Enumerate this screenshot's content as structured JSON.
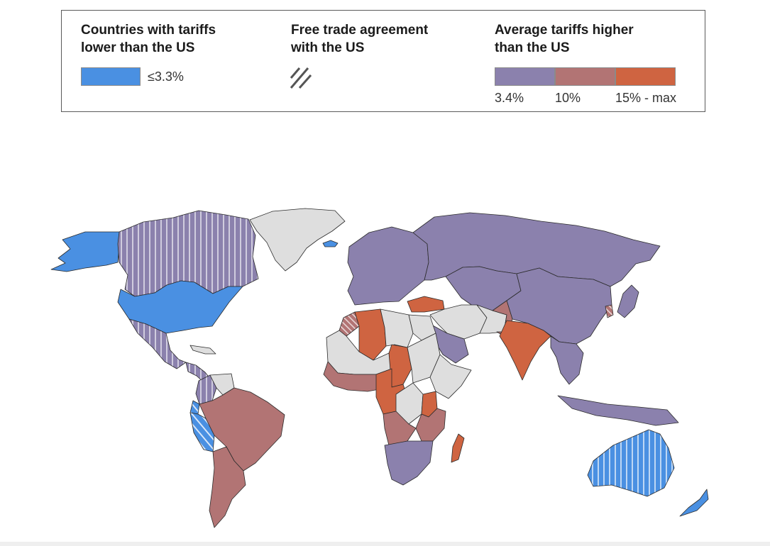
{
  "legend": {
    "lower": {
      "title": "Countries with tariffs\nlower than the US",
      "label": "≤3.3%",
      "color": "#4a90e2"
    },
    "fta": {
      "title": "Free trade agreement\nwith the US"
    },
    "higher": {
      "title": "Average tariffs higher\nthan the US",
      "bins": [
        {
          "label": "3.4%",
          "color": "#8b81ad"
        },
        {
          "label": "10%",
          "color": "#b27474"
        },
        {
          "label": "15% - max",
          "color": "#cf6441"
        }
      ]
    }
  },
  "colors": {
    "no_data": "#dedede",
    "border": "#2b2b2b"
  },
  "regions": [
    {
      "name": "Alaska",
      "category": "lower"
    },
    {
      "name": "Canada",
      "category": "fta_mid"
    },
    {
      "name": "Greenland",
      "category": "no_data"
    },
    {
      "name": "Iceland",
      "category": "lower"
    },
    {
      "name": "United States",
      "category": "lower"
    },
    {
      "name": "Mexico",
      "category": "fta_mid"
    },
    {
      "name": "Central America",
      "category": "fta_mid"
    },
    {
      "name": "Caribbean",
      "category": "no_data"
    },
    {
      "name": "Colombia",
      "category": "fta_mid"
    },
    {
      "name": "Venezuela",
      "category": "no_data"
    },
    {
      "name": "Peru",
      "category": "fta_lower"
    },
    {
      "name": "Ecuador",
      "category": "fta_lower"
    },
    {
      "name": "Brazil",
      "category": "high10"
    },
    {
      "name": "Southern Cone",
      "category": "high10"
    },
    {
      "name": "Europe",
      "category": "mid"
    },
    {
      "name": "Russia",
      "category": "mid"
    },
    {
      "name": "Central Asia",
      "category": "mid"
    },
    {
      "name": "China",
      "category": "mid"
    },
    {
      "name": "Japan",
      "category": "mid"
    },
    {
      "name": "South Korea",
      "category": "fta_high10"
    },
    {
      "name": "Turkey",
      "category": "high15"
    },
    {
      "name": "Middle East",
      "category": "no_data"
    },
    {
      "name": "Saudi Arabia",
      "category": "mid"
    },
    {
      "name": "Iran",
      "category": "no_data"
    },
    {
      "name": "Pakistan",
      "category": "high10"
    },
    {
      "name": "India",
      "category": "high15"
    },
    {
      "name": "Southeast Asia",
      "category": "mid"
    },
    {
      "name": "Indonesia",
      "category": "mid"
    },
    {
      "name": "Algeria",
      "category": "high15"
    },
    {
      "name": "Morocco",
      "category": "fta_high10"
    },
    {
      "name": "Libya",
      "category": "no_data"
    },
    {
      "name": "Egypt",
      "category": "no_data"
    },
    {
      "name": "Sahel",
      "category": "no_data"
    },
    {
      "name": "West Africa",
      "category": "high10"
    },
    {
      "name": "Chad",
      "category": "high15"
    },
    {
      "name": "Sudan",
      "category": "no_data"
    },
    {
      "name": "Horn of Africa",
      "category": "no_data"
    },
    {
      "name": "Central Africa",
      "category": "high15"
    },
    {
      "name": "DR Congo",
      "category": "no_data"
    },
    {
      "name": "Kenya",
      "category": "high15"
    },
    {
      "name": "East Africa",
      "category": "high10"
    },
    {
      "name": "Angola",
      "category": "high10"
    },
    {
      "name": "Southern Africa",
      "category": "mid"
    },
    {
      "name": "Madagascar",
      "category": "high15"
    },
    {
      "name": "Australia",
      "category": "fta_lower"
    },
    {
      "name": "New Zealand",
      "category": "lower"
    }
  ]
}
